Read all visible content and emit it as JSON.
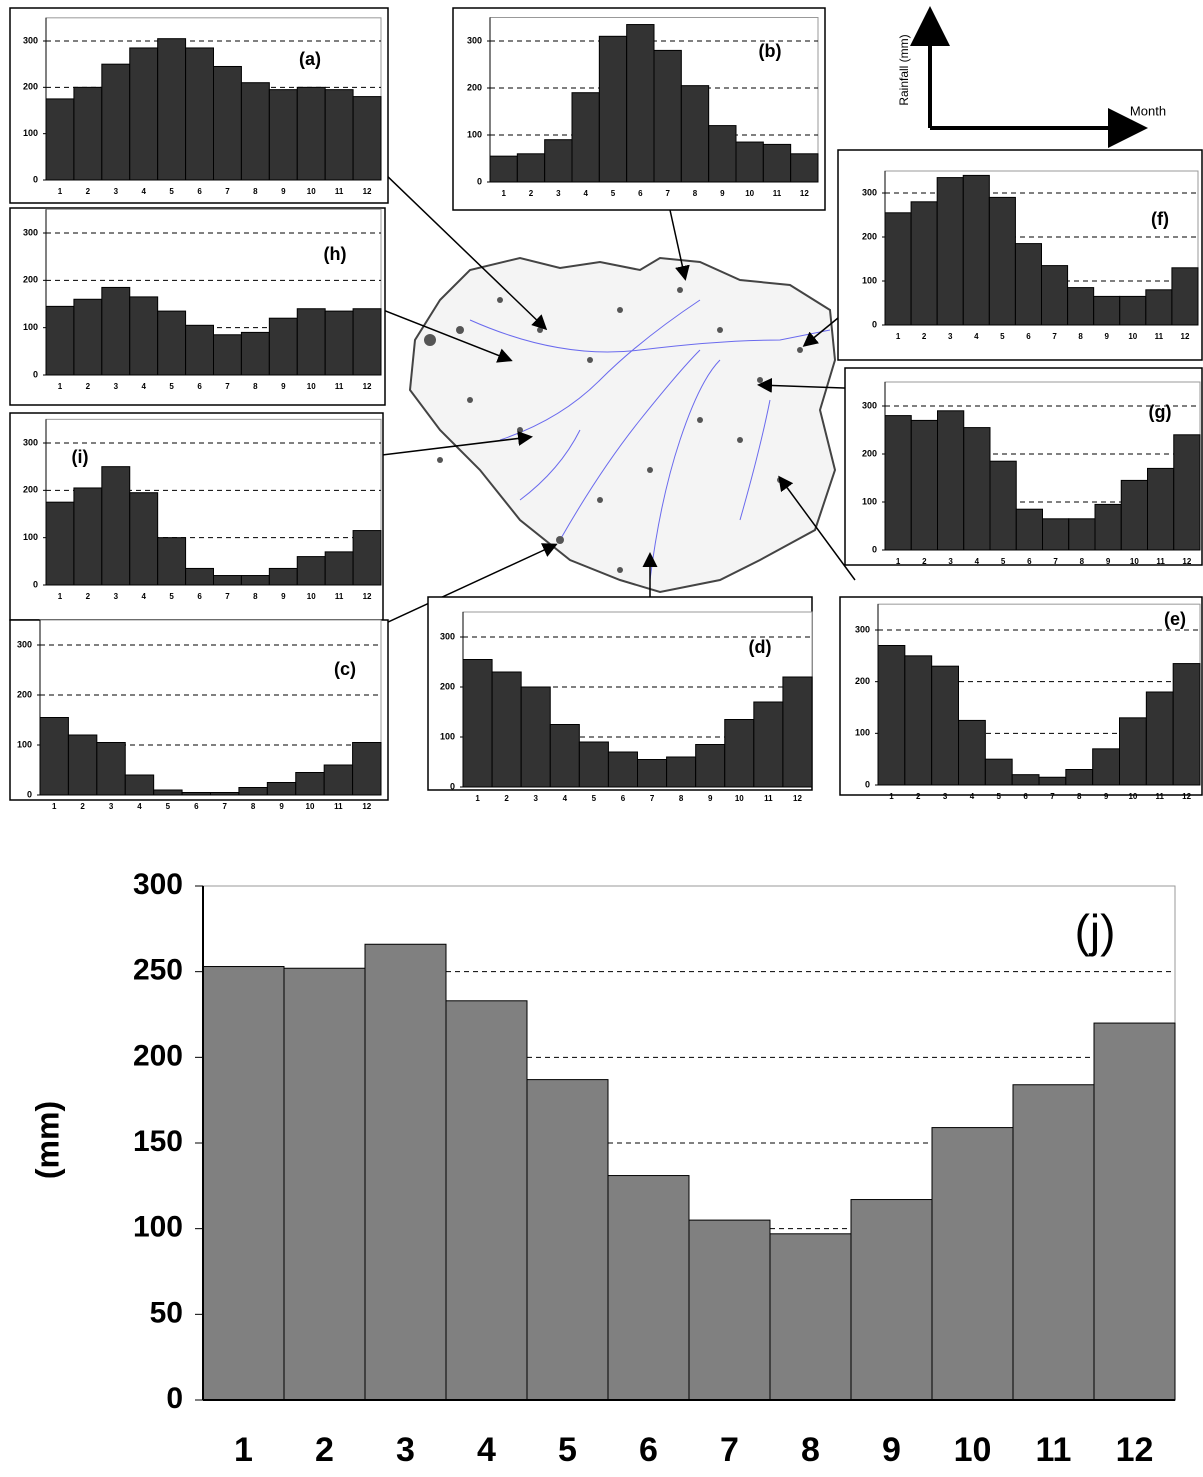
{
  "chart_data": [
    {
      "type": "bar",
      "label": "(a)",
      "categories": [
        "1",
        "2",
        "3",
        "4",
        "5",
        "6",
        "7",
        "8",
        "9",
        "10",
        "11",
        "12"
      ],
      "values": [
        175,
        200,
        250,
        285,
        305,
        285,
        245,
        210,
        195,
        200,
        195,
        180
      ],
      "color": "#333333",
      "ylim": [
        0,
        350
      ],
      "yticks": [
        0,
        100,
        200,
        300
      ],
      "grid": true
    },
    {
      "type": "bar",
      "label": "(b)",
      "categories": [
        "1",
        "2",
        "3",
        "4",
        "5",
        "6",
        "7",
        "8",
        "9",
        "10",
        "11",
        "12"
      ],
      "values": [
        55,
        60,
        90,
        190,
        310,
        335,
        280,
        205,
        120,
        85,
        80,
        60
      ],
      "color": "#333333",
      "ylim": [
        0,
        350
      ],
      "yticks": [
        0,
        100,
        200,
        300
      ],
      "grid": true
    },
    {
      "type": "bar",
      "label": "(f)",
      "categories": [
        "1",
        "2",
        "3",
        "4",
        "5",
        "6",
        "7",
        "8",
        "9",
        "10",
        "11",
        "12"
      ],
      "values": [
        255,
        280,
        335,
        340,
        290,
        185,
        135,
        85,
        65,
        65,
        80,
        130
      ],
      "color": "#333333",
      "ylim": [
        0,
        350
      ],
      "yticks": [
        0,
        100,
        200,
        300
      ],
      "grid": true
    },
    {
      "type": "bar",
      "label": "(g)",
      "categories": [
        "1",
        "2",
        "3",
        "4",
        "5",
        "6",
        "7",
        "8",
        "9",
        "10",
        "11",
        "12"
      ],
      "values": [
        280,
        270,
        290,
        255,
        185,
        85,
        65,
        65,
        95,
        145,
        170,
        240
      ],
      "color": "#333333",
      "ylim": [
        0,
        350
      ],
      "yticks": [
        0,
        100,
        200,
        300
      ],
      "grid": true
    },
    {
      "type": "bar",
      "label": "(h)",
      "categories": [
        "1",
        "2",
        "3",
        "4",
        "5",
        "6",
        "7",
        "8",
        "9",
        "10",
        "11",
        "12"
      ],
      "values": [
        145,
        160,
        185,
        165,
        135,
        105,
        85,
        90,
        120,
        140,
        135,
        140
      ],
      "color": "#333333",
      "ylim": [
        0,
        350
      ],
      "yticks": [
        0,
        100,
        200,
        300
      ],
      "grid": true
    },
    {
      "type": "bar",
      "label": "(i)",
      "categories": [
        "1",
        "2",
        "3",
        "4",
        "5",
        "6",
        "7",
        "8",
        "9",
        "10",
        "11",
        "12"
      ],
      "values": [
        175,
        205,
        250,
        195,
        100,
        35,
        20,
        20,
        35,
        60,
        70,
        115
      ],
      "color": "#333333",
      "ylim": [
        0,
        350
      ],
      "yticks": [
        0,
        100,
        200,
        300
      ],
      "grid": true
    },
    {
      "type": "bar",
      "label": "(c)",
      "categories": [
        "1",
        "2",
        "3",
        "4",
        "5",
        "6",
        "7",
        "8",
        "9",
        "10",
        "11",
        "12"
      ],
      "values": [
        155,
        120,
        105,
        40,
        10,
        5,
        5,
        15,
        25,
        45,
        60,
        105
      ],
      "color": "#333333",
      "ylim": [
        0,
        350
      ],
      "yticks": [
        0,
        100,
        200,
        300
      ],
      "grid": true
    },
    {
      "type": "bar",
      "label": "(d)",
      "categories": [
        "1",
        "2",
        "3",
        "4",
        "5",
        "6",
        "7",
        "8",
        "9",
        "10",
        "11",
        "12"
      ],
      "values": [
        255,
        230,
        200,
        125,
        90,
        70,
        55,
        60,
        85,
        135,
        170,
        220
      ],
      "color": "#333333",
      "ylim": [
        0,
        350
      ],
      "yticks": [
        0,
        100,
        200,
        300
      ],
      "grid": true
    },
    {
      "type": "bar",
      "label": "(e)",
      "categories": [
        "1",
        "2",
        "3",
        "4",
        "5",
        "6",
        "7",
        "8",
        "9",
        "10",
        "11",
        "12"
      ],
      "values": [
        270,
        250,
        230,
        125,
        50,
        20,
        15,
        30,
        70,
        130,
        180,
        235
      ],
      "color": "#333333",
      "ylim": [
        0,
        350
      ],
      "yticks": [
        0,
        100,
        200,
        300
      ],
      "grid": true
    },
    {
      "type": "bar",
      "label": "(j)",
      "y_label": "(mm)",
      "categories": [
        "1",
        "2",
        "3",
        "4",
        "5",
        "6",
        "7",
        "8",
        "9",
        "10",
        "11",
        "12"
      ],
      "values": [
        253,
        252,
        266,
        233,
        187,
        131,
        105,
        97,
        117,
        159,
        184,
        220
      ],
      "color": "#808080",
      "ylim": [
        0,
        300
      ],
      "yticks": [
        0,
        50,
        100,
        150,
        200,
        250,
        300
      ],
      "grid": true
    }
  ],
  "legend_key": {
    "y_label": "Rainfall (mm)",
    "x_label": "Month"
  }
}
